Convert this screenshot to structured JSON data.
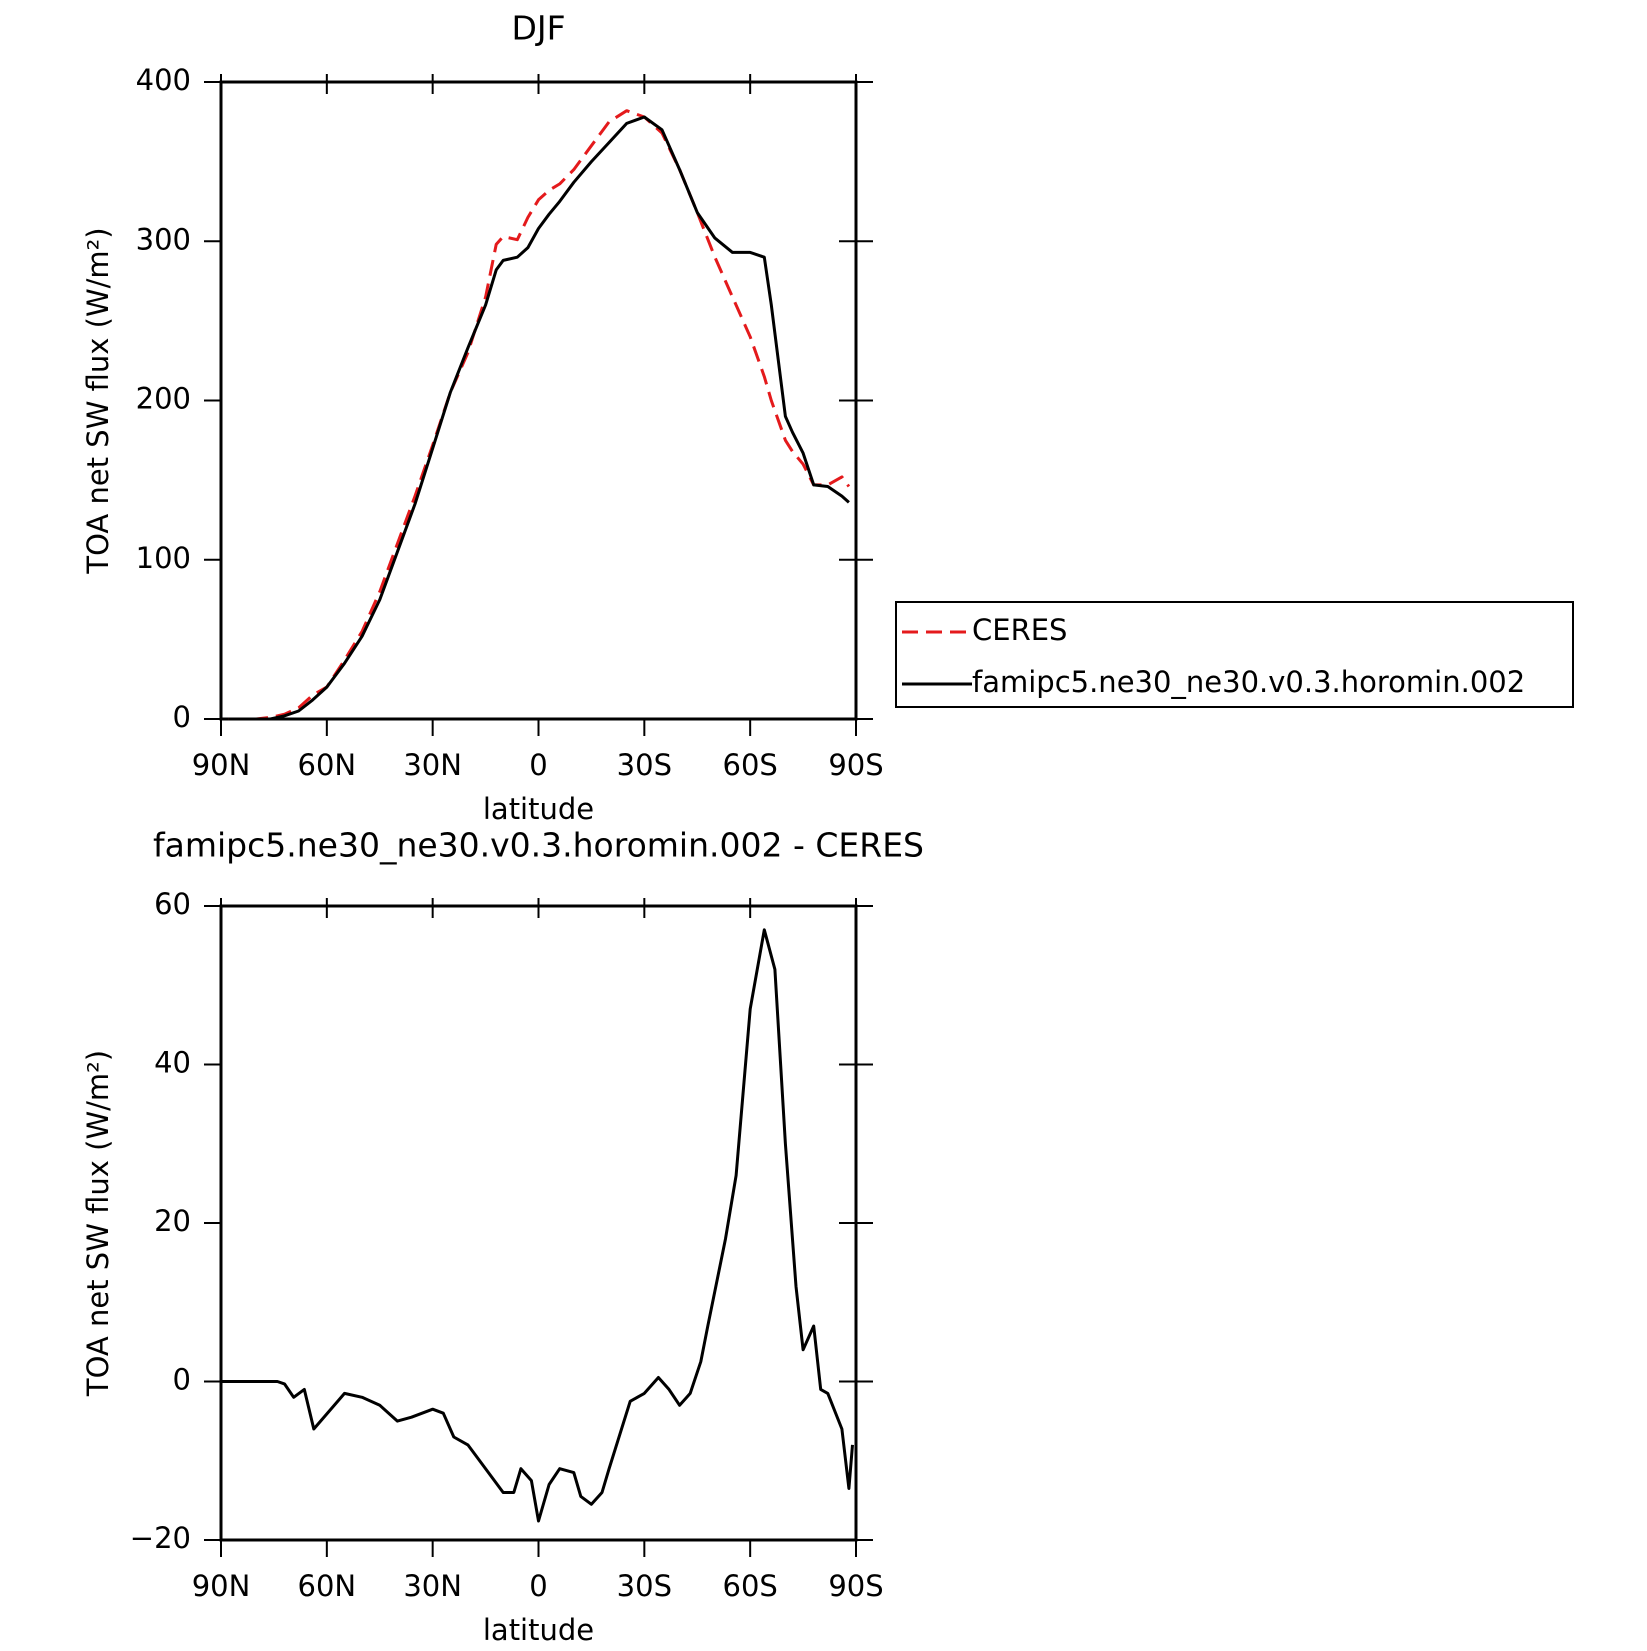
{
  "chart_data": [
    {
      "type": "line",
      "title": "DJF",
      "x_label": "latitude",
      "y_label": "TOA net SW flux (W/m²)",
      "x": [
        88,
        84,
        80,
        76,
        72,
        68,
        64,
        60,
        55,
        50,
        45,
        40,
        35,
        30,
        25,
        20,
        15,
        12,
        10,
        6,
        3,
        0,
        -3,
        -6,
        -10,
        -15,
        -20,
        -25,
        -30,
        -35,
        -40,
        -45,
        -50,
        -55,
        -60,
        -64,
        -66,
        -70,
        -72,
        -75,
        -78,
        -82,
        -86,
        -88
      ],
      "series": [
        {
          "name": "CERES",
          "color": "#e41a1c",
          "dashed": true,
          "values": [
            0,
            0,
            0,
            1,
            3,
            7,
            15,
            20,
            37,
            55,
            80,
            110,
            140,
            172,
            205,
            230,
            265,
            298,
            303,
            301,
            315,
            326,
            332,
            336,
            345,
            360,
            375,
            382,
            378,
            368,
            345,
            318,
            290,
            265,
            240,
            215,
            200,
            175,
            168,
            160,
            147,
            147,
            152,
            146
          ]
        },
        {
          "name": "famipc5.ne30_ne30.v0.3.horomin.002",
          "color": "#000000",
          "dashed": false,
          "values": [
            0,
            0,
            0,
            0,
            2,
            5,
            12,
            20,
            35,
            52,
            75,
            105,
            135,
            170,
            205,
            233,
            260,
            282,
            288,
            290,
            296,
            308,
            317,
            325,
            337,
            350,
            362,
            374,
            378,
            370,
            345,
            318,
            302,
            293,
            293,
            290,
            260,
            190,
            180,
            167,
            147,
            146,
            140,
            136
          ]
        }
      ],
      "xlim": [
        90,
        -90
      ],
      "xticks": [
        {
          "value": 90,
          "label": "90N"
        },
        {
          "value": 60,
          "label": "60N"
        },
        {
          "value": 30,
          "label": "30N"
        },
        0,
        {
          "value": -30,
          "label": "30S"
        },
        {
          "value": -60,
          "label": "60S"
        },
        {
          "value": -90,
          "label": "90S"
        }
      ],
      "ylim": [
        0,
        400
      ],
      "yticks": [
        0,
        100,
        200,
        300,
        400
      ],
      "legend": true
    },
    {
      "type": "line",
      "title": "famipc5.ne30_ne30.v0.3.horomin.002 - CERES",
      "x_label": "latitude",
      "y_label": "TOA net SW flux (W/m²)",
      "x": [
        90,
        80,
        74,
        72,
        69.4,
        66.4,
        63.7,
        55,
        50,
        45,
        40,
        36,
        30,
        27,
        24,
        20,
        10,
        7,
        5,
        2,
        0,
        -3,
        -6,
        -10,
        -12,
        -15,
        -18,
        -20,
        -26,
        -30,
        -34,
        -37,
        -40,
        -43,
        -46,
        -48,
        -53,
        -56,
        -60,
        -64,
        -67,
        -70,
        -73,
        -75,
        -78,
        -80,
        -82,
        -86,
        -88,
        -89
      ],
      "series": [
        {
          "name": "famipc5.ne30_ne30.v0.3.horomin.002 - CERES",
          "color": "#000000",
          "dashed": false,
          "values": [
            0,
            0,
            0,
            -0.3,
            -2,
            -1,
            -6,
            -1.5,
            -2,
            -3,
            -5,
            -4.5,
            -3.5,
            -4,
            -7,
            -8,
            -14,
            -14,
            -11,
            -12.5,
            -17.6,
            -13,
            -11,
            -11.5,
            -14.5,
            -15.5,
            -14,
            -11,
            -2.5,
            -1.5,
            0.5,
            -1,
            -3,
            -1.5,
            2.5,
            7,
            18,
            26,
            47,
            57,
            52,
            30,
            12,
            4,
            7,
            -1,
            -1.5,
            -6,
            -13.5,
            -8
          ]
        }
      ],
      "xlim": [
        90,
        -90
      ],
      "xticks": [
        {
          "value": 90,
          "label": "90N"
        },
        {
          "value": 60,
          "label": "60N"
        },
        {
          "value": 30,
          "label": "30N"
        },
        0,
        {
          "value": -30,
          "label": "30S"
        },
        {
          "value": -60,
          "label": "60S"
        },
        {
          "value": -90,
          "label": "90S"
        }
      ],
      "ylim": [
        -20,
        60
      ],
      "yticks": [
        {
          "value": -20,
          "label": "−20"
        },
        0,
        20,
        40,
        60
      ],
      "legend": false
    }
  ]
}
